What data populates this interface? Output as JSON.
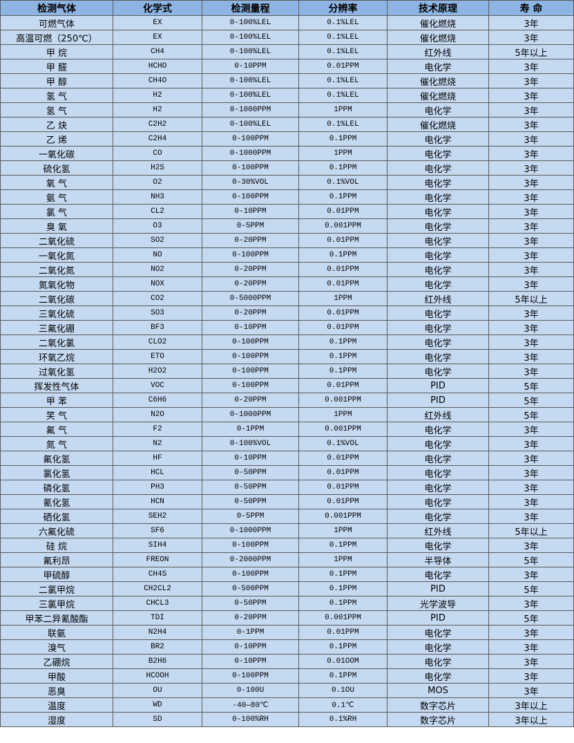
{
  "table": {
    "headers": [
      "检测气体",
      "化学式",
      "检测量程",
      "分辨率",
      "技术原理",
      "寿 命"
    ],
    "rows": [
      [
        "可燃气体",
        "EX",
        "0-100%LEL",
        "0.1%LEL",
        "催化燃烧",
        "3年"
      ],
      [
        "高温可燃（250℃）",
        "EX",
        "0-100%LEL",
        "0.1%LEL",
        "催化燃烧",
        "3年"
      ],
      [
        "甲 烷",
        "CH4",
        "0-100%LEL",
        "0.1%LEL",
        "红外线",
        "5年以上"
      ],
      [
        "甲 醛",
        "HCHO",
        "0-10PPM",
        "0.01PPM",
        "电化学",
        "3年"
      ],
      [
        "甲 醇",
        "CH4O",
        "0-100%LEL",
        "0.1%LEL",
        "催化燃烧",
        "3年"
      ],
      [
        "氢 气",
        "H2",
        "0-100%LEL",
        "0.1%LEL",
        "催化燃烧",
        "3年"
      ],
      [
        "氢 气",
        "H2",
        "0-1000PPM",
        "1PPM",
        "电化学",
        "3年"
      ],
      [
        "乙 炔",
        "C2H2",
        "0-100%LEL",
        "0.1%LEL",
        "催化燃烧",
        "3年"
      ],
      [
        "乙 烯",
        "C2H4",
        "0-100PPM",
        "0.1PPM",
        "电化学",
        "3年"
      ],
      [
        "一氧化碳",
        "CO",
        "0-1000PPM",
        "1PPM",
        "电化学",
        "3年"
      ],
      [
        "硫化氢",
        "H2S",
        "0-100PPM",
        "0.1PPM",
        "电化学",
        "3年"
      ],
      [
        "氧 气",
        "O2",
        "0-30%VOL",
        "0.1%VOL",
        "电化学",
        "3年"
      ],
      [
        "氨 气",
        "NH3",
        "0-100PPM",
        "0.1PPM",
        "电化学",
        "3年"
      ],
      [
        "氯 气",
        "CL2",
        "0-10PPM",
        "0.01PPM",
        "电化学",
        "3年"
      ],
      [
        "臭 氧",
        "O3",
        "0-5PPM",
        "0.001PPM",
        "电化学",
        "3年"
      ],
      [
        "二氧化硫",
        "SO2",
        "0-20PPM",
        "0.01PPM",
        "电化学",
        "3年"
      ],
      [
        "一氧化氮",
        "NO",
        "0-100PPM",
        "0.1PPM",
        "电化学",
        "3年"
      ],
      [
        "二氧化氮",
        "NO2",
        "0-20PPM",
        "0.01PPM",
        "电化学",
        "3年"
      ],
      [
        "氮氧化物",
        "NOX",
        "0-20PPM",
        "0.01PPM",
        "电化学",
        "3年"
      ],
      [
        "二氧化碳",
        "CO2",
        "0-5000PPM",
        "1PPM",
        "红外线",
        "5年以上"
      ],
      [
        "三氧化硫",
        "SO3",
        "0-20PPM",
        "0.01PPM",
        "电化学",
        "3年"
      ],
      [
        "三氟化硼",
        "BF3",
        "0-10PPM",
        "0.01PPM",
        "电化学",
        "3年"
      ],
      [
        "二氧化氯",
        "CLO2",
        "0-100PPM",
        "0.1PPM",
        "电化学",
        "3年"
      ],
      [
        "环氧乙烷",
        "ETO",
        "0-100PPM",
        "0.1PPM",
        "电化学",
        "3年"
      ],
      [
        "过氧化氢",
        "H2O2",
        "0-100PPM",
        "0.1PPM",
        "电化学",
        "3年"
      ],
      [
        "挥发性气体",
        "VOC",
        "0-100PPM",
        "0.01PPM",
        "PID",
        "5年"
      ],
      [
        "甲 苯",
        "C6H6",
        "0-20PPM",
        "0.001PPM",
        "PID",
        "5年"
      ],
      [
        "笑 气",
        "N2O",
        "0-1000PPM",
        "1PPM",
        "红外线",
        "5年"
      ],
      [
        "氟 气",
        "F2",
        "0-1PPM",
        "0.001PPM",
        "电化学",
        "3年"
      ],
      [
        "氮 气",
        "N2",
        "0-100%VOL",
        "0.1%VOL",
        "电化学",
        "3年"
      ],
      [
        "氟化氢",
        "HF",
        "0-10PPM",
        "0.01PPM",
        "电化学",
        "3年"
      ],
      [
        "氯化氢",
        "HCL",
        "0-50PPM",
        "0.01PPM",
        "电化学",
        "3年"
      ],
      [
        "磷化氢",
        "PH3",
        "0-50PPM",
        "0.01PPM",
        "电化学",
        "3年"
      ],
      [
        "氰化氢",
        "HCN",
        "0-50PPM",
        "0.01PPM",
        "电化学",
        "3年"
      ],
      [
        "硒化氢",
        "SEH2",
        "0-5PPM",
        "0.001PPM",
        "电化学",
        "3年"
      ],
      [
        "六氟化硫",
        "SF6",
        "0-1000PPM",
        "1PPM",
        "红外线",
        "5年以上"
      ],
      [
        "硅 烷",
        "SIH4",
        "0-100PPM",
        "0.1PPM",
        "电化学",
        "3年"
      ],
      [
        "氟利昂",
        "FREON",
        "0-2000PPM",
        "1PPM",
        "半导体",
        "5年"
      ],
      [
        "甲硫醇",
        "CH4S",
        "0-100PPM",
        "0.1PPM",
        "电化学",
        "3年"
      ],
      [
        "二氯甲烷",
        "CH2CL2",
        "0-500PPM",
        "0.1PPM",
        "PID",
        "5年"
      ],
      [
        "三氯甲烷",
        "CHCL3",
        "0-50PPM",
        "0.1PPM",
        "光学波导",
        "3年"
      ],
      [
        "甲苯二异氰酸酯",
        "TDI",
        "0-20PPM",
        "0.001PPM",
        "PID",
        "5年"
      ],
      [
        "联氨",
        "N2H4",
        "0-1PPM",
        "0.01PPM",
        "电化学",
        "3年"
      ],
      [
        "溴气",
        "BR2",
        "0-10PPM",
        "0.1PPM",
        "电化学",
        "3年"
      ],
      [
        "乙硼烷",
        "B2H6",
        "0-10PPM",
        "0.01OOM",
        "电化学",
        "3年"
      ],
      [
        "甲酸",
        "HCOOH",
        "0-100PPM",
        "0.1PPM",
        "电化学",
        "3年"
      ],
      [
        "恶臭",
        "OU",
        "0-100U",
        "0.1OU",
        "MOS",
        "3年"
      ],
      [
        "温度",
        "WD",
        "-40—80℃",
        "0.1℃",
        "数字芯片",
        "3年以上"
      ],
      [
        "湿度",
        "SD",
        "0-100%RH",
        "0.1%RH",
        "数字芯片",
        "3年以上"
      ]
    ]
  }
}
